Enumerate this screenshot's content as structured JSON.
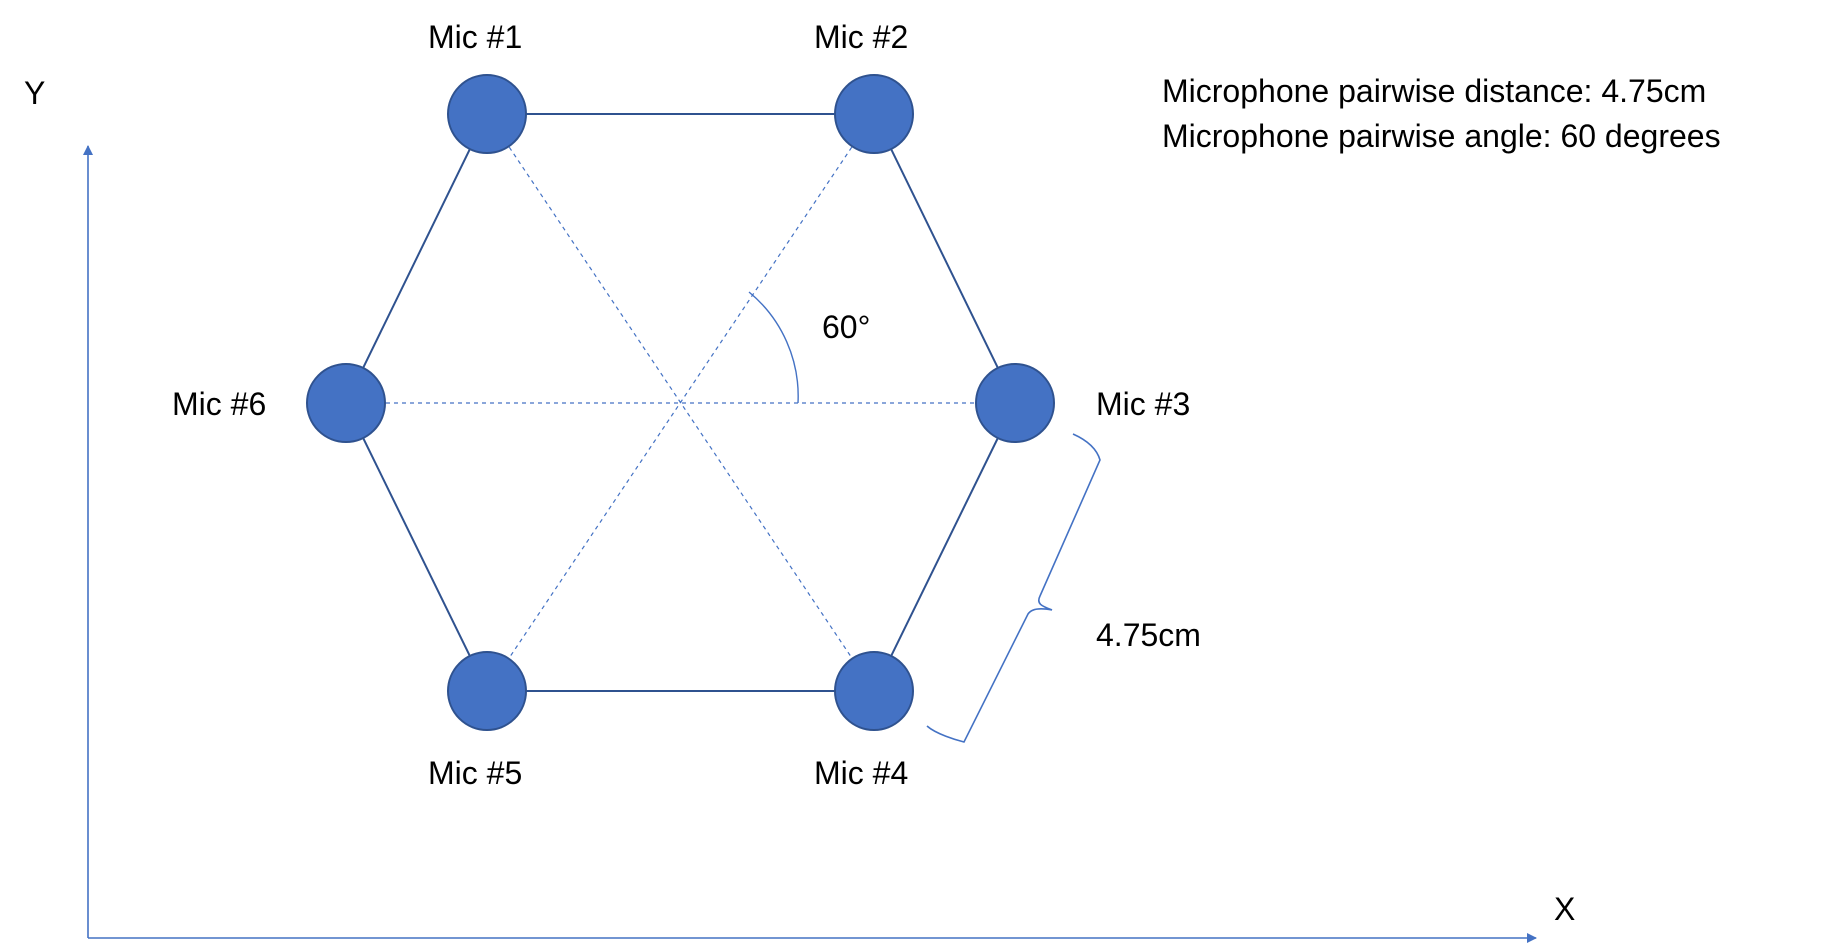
{
  "axes": {
    "x_label": "X",
    "y_label": "Y",
    "color": "#4472C4"
  },
  "info": {
    "distance_line": "Microphone pairwise distance: 4.75cm",
    "angle_line": "Microphone pairwise angle: 60 degrees"
  },
  "mics": [
    {
      "id": 1,
      "label": "Mic #1"
    },
    {
      "id": 2,
      "label": "Mic #2"
    },
    {
      "id": 3,
      "label": "Mic #3"
    },
    {
      "id": 4,
      "label": "Mic #4"
    },
    {
      "id": 5,
      "label": "Mic #5"
    },
    {
      "id": 6,
      "label": "Mic #6"
    }
  ],
  "angle_annotation": {
    "label": "60°",
    "value_degrees": 60
  },
  "distance_annotation": {
    "label": "4.75cm",
    "value_cm": 4.75
  },
  "colors": {
    "mic_fill": "#4472C4",
    "mic_stroke": "#2F528F",
    "edge": "#2F528F",
    "diagonal": "#4472C4",
    "annotation": "#4472C4",
    "text": "#000000"
  }
}
